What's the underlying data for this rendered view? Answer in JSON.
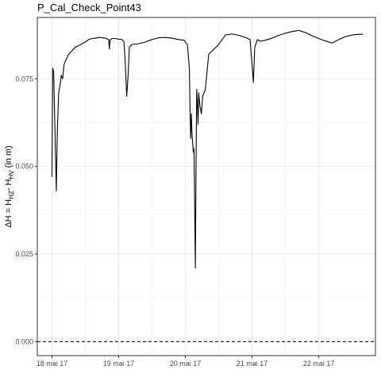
{
  "chart_data": {
    "type": "line",
    "title": "P_Cal_Check_Point43",
    "ylabel": {
      "prefix": "ΔH = H",
      "sub1": "HZ",
      "middle": "- H",
      "sub2": "HV",
      "suffix": " (in m)"
    },
    "xlabel": "",
    "x_unit": "day",
    "xlim": [
      -0.22,
      4.85
    ],
    "ylim": [
      -0.004,
      0.0925
    ],
    "x_ticks": [
      {
        "value": 0,
        "label": "18 mai 17"
      },
      {
        "value": 1,
        "label": "19 mai 17"
      },
      {
        "value": 2,
        "label": "20 mai 17"
      },
      {
        "value": 3,
        "label": "21 mai 17"
      },
      {
        "value": 4,
        "label": "22 mai 17"
      }
    ],
    "y_ticks": [
      {
        "value": 0.0,
        "label": "0.000"
      },
      {
        "value": 0.025,
        "label": "0.025"
      },
      {
        "value": 0.05,
        "label": "0.050"
      },
      {
        "value": 0.075,
        "label": "0.075"
      }
    ],
    "reference_line": {
      "y": 0.0,
      "style": "dashed"
    },
    "grid": true,
    "series": [
      {
        "values": [
          [
            0.0,
            0.047
          ],
          [
            0.01,
            0.078
          ],
          [
            0.025,
            0.077
          ],
          [
            0.045,
            0.06
          ],
          [
            0.065,
            0.043
          ],
          [
            0.08,
            0.06
          ],
          [
            0.1,
            0.071
          ],
          [
            0.12,
            0.073
          ],
          [
            0.14,
            0.076
          ],
          [
            0.16,
            0.075
          ],
          [
            0.18,
            0.079
          ],
          [
            0.2,
            0.08
          ],
          [
            0.25,
            0.082
          ],
          [
            0.3,
            0.083
          ],
          [
            0.35,
            0.084
          ],
          [
            0.4,
            0.0845
          ],
          [
            0.45,
            0.085
          ],
          [
            0.5,
            0.0855
          ],
          [
            0.55,
            0.0862
          ],
          [
            0.6,
            0.0865
          ],
          [
            0.65,
            0.0866
          ],
          [
            0.7,
            0.0868
          ],
          [
            0.75,
            0.0867
          ],
          [
            0.8,
            0.0866
          ],
          [
            0.85,
            0.0862
          ],
          [
            0.86,
            0.0835
          ],
          [
            0.87,
            0.086
          ],
          [
            0.9,
            0.0865
          ],
          [
            0.95,
            0.0865
          ],
          [
            1.0,
            0.0863
          ],
          [
            1.05,
            0.0862
          ],
          [
            1.08,
            0.0855
          ],
          [
            1.1,
            0.079
          ],
          [
            1.12,
            0.07
          ],
          [
            1.14,
            0.0755
          ],
          [
            1.16,
            0.084
          ],
          [
            1.2,
            0.0848
          ],
          [
            1.3,
            0.085
          ],
          [
            1.4,
            0.0855
          ],
          [
            1.5,
            0.0862
          ],
          [
            1.6,
            0.0867
          ],
          [
            1.7,
            0.0868
          ],
          [
            1.8,
            0.0866
          ],
          [
            1.9,
            0.0862
          ],
          [
            1.98,
            0.086
          ],
          [
            2.03,
            0.0848
          ],
          [
            2.06,
            0.078
          ],
          [
            2.07,
            0.066
          ],
          [
            2.08,
            0.058
          ],
          [
            2.09,
            0.065
          ],
          [
            2.1,
            0.059
          ],
          [
            2.12,
            0.054
          ],
          [
            2.13,
            0.055
          ],
          [
            2.15,
            0.021
          ],
          [
            2.16,
            0.05
          ],
          [
            2.17,
            0.072
          ],
          [
            2.18,
            0.068
          ],
          [
            2.19,
            0.062
          ],
          [
            2.2,
            0.071
          ],
          [
            2.22,
            0.067
          ],
          [
            2.24,
            0.065
          ],
          [
            2.26,
            0.07
          ],
          [
            2.3,
            0.072
          ],
          [
            2.35,
            0.082
          ],
          [
            2.5,
            0.0848
          ],
          [
            2.6,
            0.0875
          ],
          [
            2.7,
            0.0878
          ],
          [
            2.8,
            0.0874
          ],
          [
            2.9,
            0.0868
          ],
          [
            2.97,
            0.0862
          ],
          [
            3.0,
            0.079
          ],
          [
            3.02,
            0.074
          ],
          [
            3.04,
            0.084
          ],
          [
            3.08,
            0.0862
          ],
          [
            3.12,
            0.0857
          ],
          [
            3.2,
            0.086
          ],
          [
            3.3,
            0.0866
          ],
          [
            3.4,
            0.0874
          ],
          [
            3.5,
            0.088
          ],
          [
            3.6,
            0.0885
          ],
          [
            3.7,
            0.0888
          ],
          [
            3.8,
            0.0882
          ],
          [
            3.9,
            0.0873
          ],
          [
            4.0,
            0.0865
          ],
          [
            4.1,
            0.0858
          ],
          [
            4.2,
            0.0852
          ],
          [
            4.3,
            0.0862
          ],
          [
            4.4,
            0.087
          ],
          [
            4.5,
            0.0875
          ],
          [
            4.6,
            0.0877
          ],
          [
            4.66,
            0.0877
          ]
        ]
      }
    ]
  }
}
